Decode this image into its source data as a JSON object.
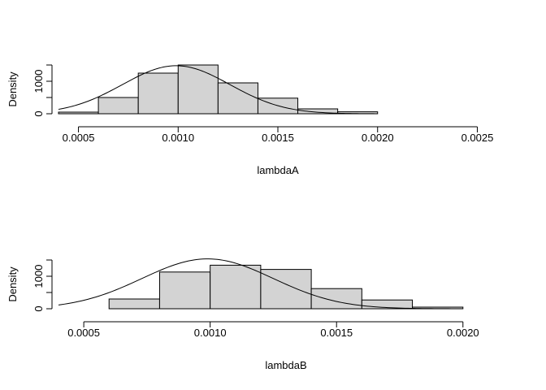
{
  "chart_data": [
    {
      "type": "bar",
      "subtype": "histogram-with-density-curve",
      "xlabel": "lambdaA",
      "ylabel": "Density",
      "xlim": [
        0.0004,
        0.0026
      ],
      "ylim": [
        0,
        1500
      ],
      "x_ticks": [
        "0.0005",
        "0.0010",
        "0.0015",
        "0.0020",
        "0.0025"
      ],
      "x_tick_values": [
        0.0005,
        0.001,
        0.0015,
        0.002,
        0.0025
      ],
      "y_ticks": [
        "0",
        "1000"
      ],
      "y_tick_values": [
        0,
        500,
        1000,
        1500
      ],
      "bins": [
        {
          "x0": 0.0004,
          "x1": 0.0006,
          "density": 50
        },
        {
          "x0": 0.0006,
          "x1": 0.0008,
          "density": 500
        },
        {
          "x0": 0.0008,
          "x1": 0.001,
          "density": 1250
        },
        {
          "x0": 0.001,
          "x1": 0.0012,
          "density": 1500
        },
        {
          "x0": 0.0012,
          "x1": 0.0014,
          "density": 950
        },
        {
          "x0": 0.0014,
          "x1": 0.0016,
          "density": 480
        },
        {
          "x0": 0.0016,
          "x1": 0.0018,
          "density": 150
        },
        {
          "x0": 0.0018,
          "x1": 0.002,
          "density": 60
        }
      ],
      "curve": {
        "type": "normal",
        "mean": 0.00099,
        "sd": 0.00027,
        "x_range": [
          0.0004,
          0.002
        ]
      },
      "colors": {
        "bar_fill": "#d3d3d3",
        "bar_stroke": "#000000",
        "line": "#000000"
      }
    },
    {
      "type": "bar",
      "subtype": "histogram-with-density-curve",
      "xlabel": "lambdaB",
      "ylabel": "Density",
      "xlim": [
        0.0004,
        0.0022
      ],
      "ylim": [
        0,
        1500
      ],
      "x_ticks": [
        "0.0005",
        "0.0010",
        "0.0015",
        "0.0020"
      ],
      "x_tick_values": [
        0.0005,
        0.001,
        0.0015,
        0.002
      ],
      "y_ticks": [
        "0",
        "1000"
      ],
      "y_tick_values": [
        0,
        500,
        1000,
        1500
      ],
      "bins": [
        {
          "x0": 0.0004,
          "x1": 0.0006,
          "density": 0
        },
        {
          "x0": 0.0006,
          "x1": 0.0008,
          "density": 300
        },
        {
          "x0": 0.0008,
          "x1": 0.001,
          "density": 1130
        },
        {
          "x0": 0.001,
          "x1": 0.0012,
          "density": 1340
        },
        {
          "x0": 0.0012,
          "x1": 0.0014,
          "density": 1210
        },
        {
          "x0": 0.0014,
          "x1": 0.0016,
          "density": 620
        },
        {
          "x0": 0.0016,
          "x1": 0.0018,
          "density": 270
        },
        {
          "x0": 0.0018,
          "x1": 0.002,
          "density": 50
        }
      ],
      "curve": {
        "type": "normal",
        "mean": 0.00099,
        "sd": 0.00026,
        "x_range": [
          0.0004,
          0.002
        ]
      },
      "colors": {
        "bar_fill": "#d3d3d3",
        "bar_stroke": "#000000",
        "line": "#000000"
      }
    }
  ]
}
